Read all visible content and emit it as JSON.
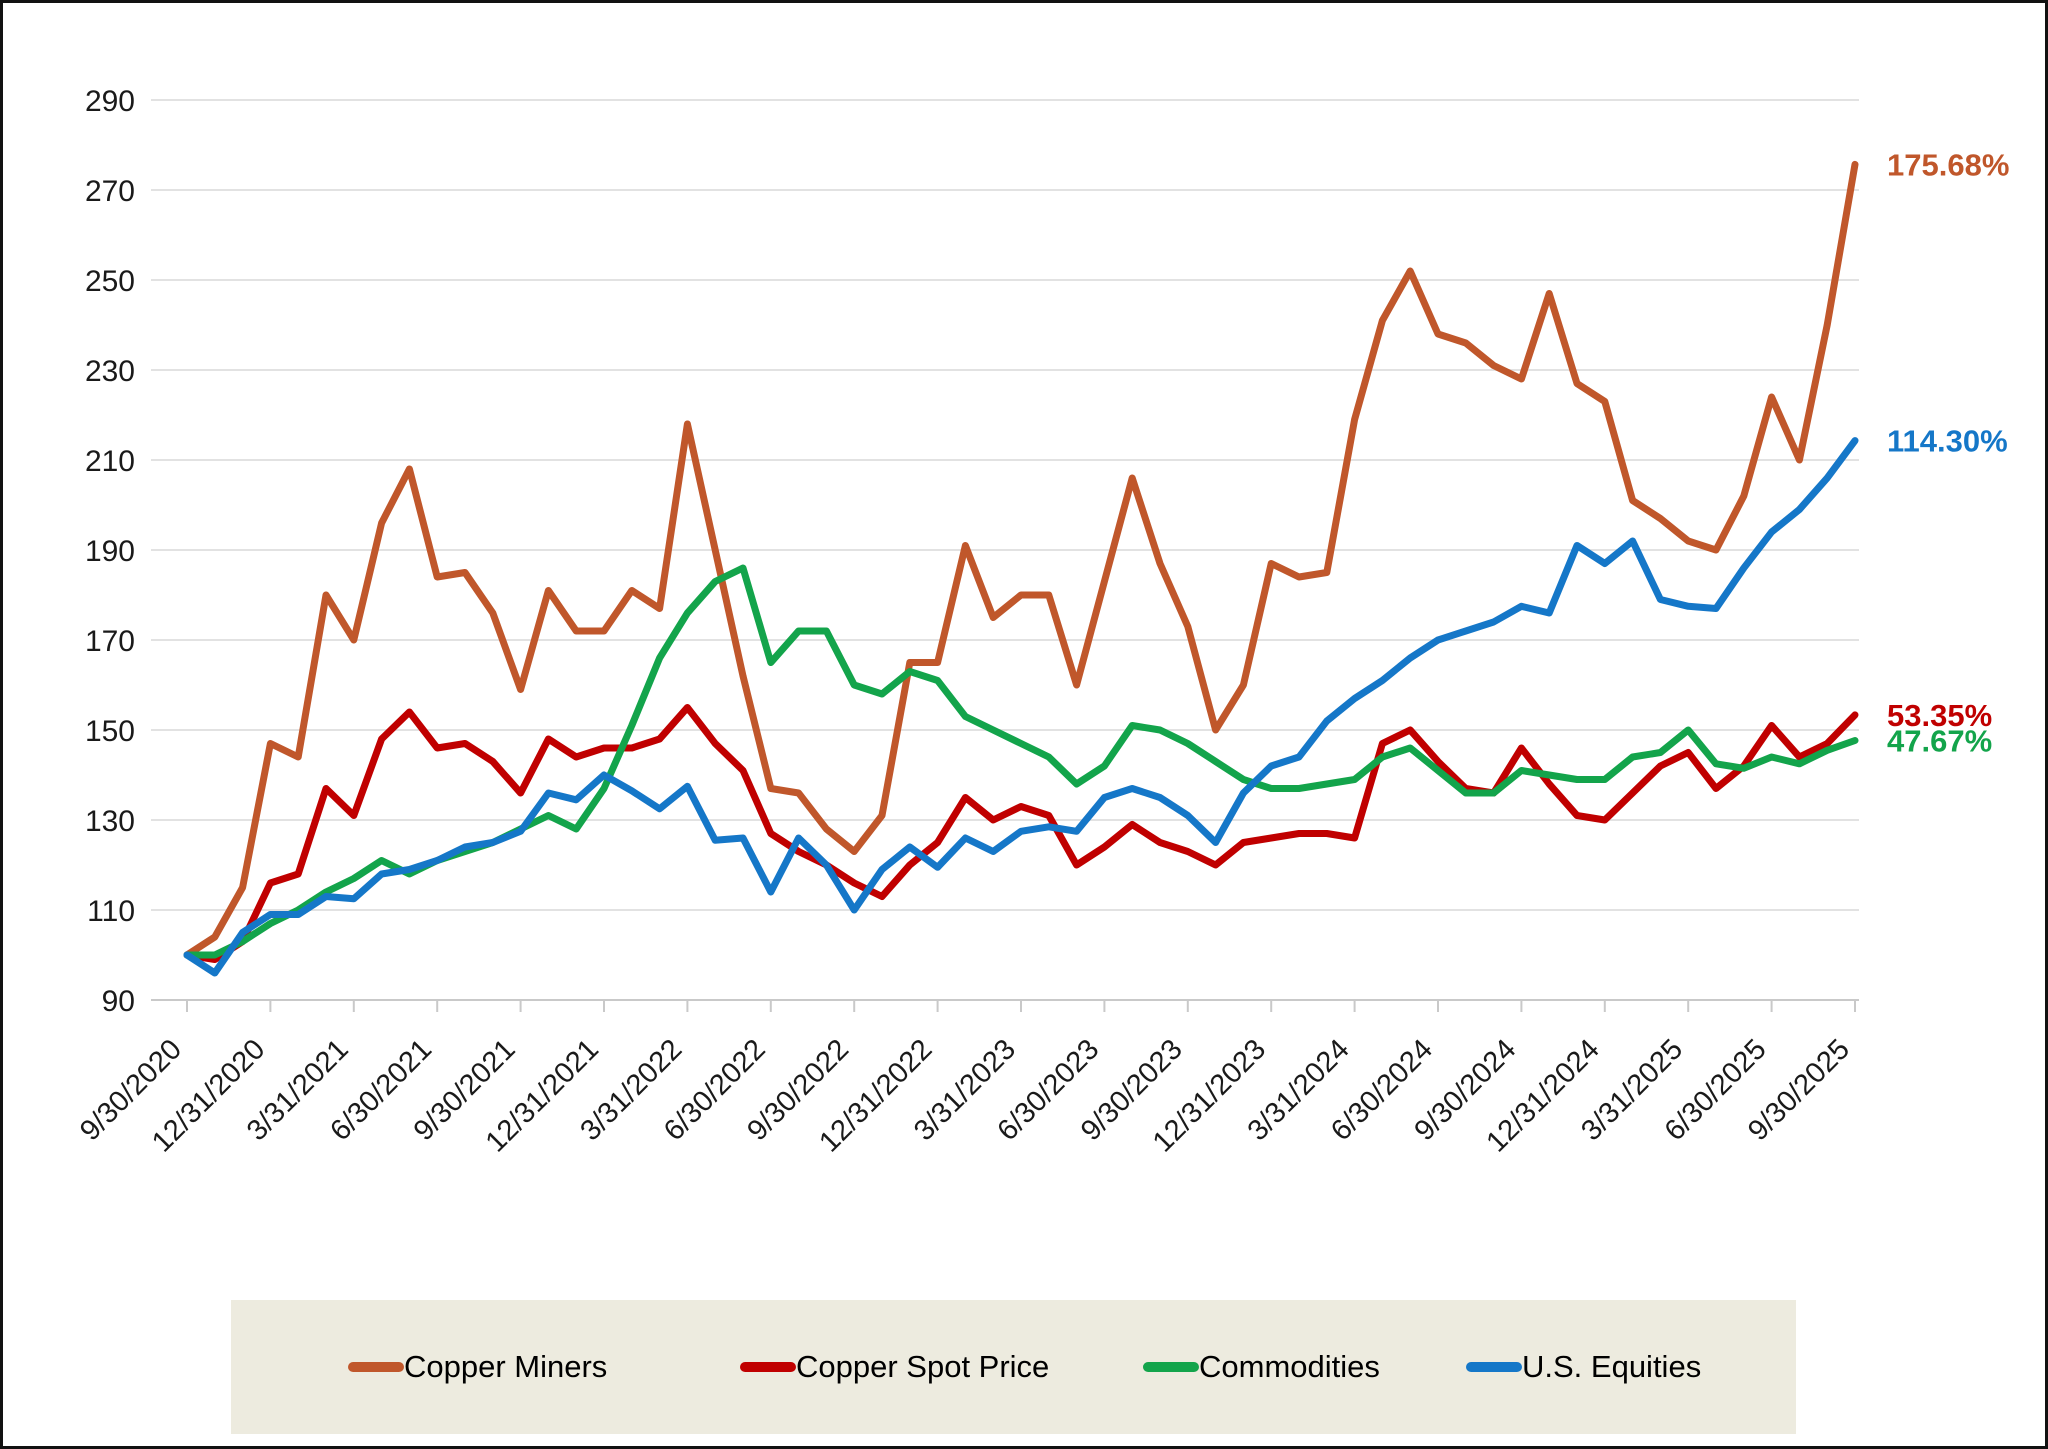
{
  "chart_data": {
    "type": "line",
    "title": "",
    "description": "Growth index chart, all series rebased to 100 at 9/30/2020, monthly data points with quarterly x-axis labels",
    "y_axis": {
      "min": 90,
      "max": 290,
      "step": 20,
      "tick_labels": [
        "90",
        "110",
        "130",
        "150",
        "170",
        "190",
        "210",
        "230",
        "250",
        "270",
        "290"
      ]
    },
    "x_tick_labels": [
      "9/30/2020",
      "12/31/2020",
      "3/31/2021",
      "6/30/2021",
      "9/30/2021",
      "12/31/2021",
      "3/31/2022",
      "6/30/2022",
      "9/30/2022",
      "12/31/2022",
      "3/31/2023",
      "6/30/2023",
      "9/30/2023",
      "12/31/2023",
      "3/31/2024",
      "6/30/2024",
      "9/30/2024",
      "12/31/2024",
      "3/31/2025",
      "6/30/2025",
      "9/30/2025"
    ],
    "points_per_quarter": 3,
    "grid": "horizontal",
    "legend_position": "bottom",
    "legend_bg": "#EDEBDF",
    "colors": {
      "gridline": "#E2E2E2",
      "axis": "#C9C9C9",
      "text": "#1A1A1A"
    },
    "series": [
      {
        "name": "Copper Miners",
        "color": "#C0572B",
        "end_label": "175.68%",
        "values": [
          100,
          104,
          115,
          147,
          144,
          180,
          170,
          196,
          208,
          184,
          185,
          176,
          159,
          181,
          172,
          172,
          181,
          177,
          218,
          190,
          162,
          137,
          136,
          128,
          123,
          131,
          165,
          165,
          191,
          175,
          180,
          180,
          160,
          183,
          206,
          187,
          173,
          150,
          160,
          187,
          184,
          185,
          219,
          241,
          252,
          238,
          236,
          231,
          228,
          247,
          227,
          223,
          201,
          197,
          192,
          190,
          202,
          224,
          210,
          240,
          275.68
        ]
      },
      {
        "name": "Copper Spot Price",
        "color": "#C00000",
        "end_label": "53.35%",
        "values": [
          100,
          99,
          103,
          116,
          118,
          137,
          131,
          148,
          154,
          146,
          147,
          143,
          136,
          148,
          144,
          146,
          146,
          148,
          155,
          147,
          141,
          127,
          123,
          120,
          116,
          113,
          120,
          125,
          135,
          130,
          133,
          131,
          120,
          124,
          129,
          125,
          123,
          120,
          125,
          126,
          127,
          127,
          126,
          147,
          150,
          143,
          137,
          136,
          146,
          138,
          131,
          130,
          136,
          142,
          145,
          137,
          142,
          151,
          144,
          147,
          153.35
        ]
      },
      {
        "name": "Commodities",
        "color": "#13A44B",
        "end_label": "47.67%",
        "values": [
          100,
          100,
          103,
          107,
          110,
          114,
          117,
          121,
          118,
          121,
          123,
          125,
          128,
          131,
          128,
          137,
          151,
          166,
          176,
          183,
          186,
          165,
          172,
          172,
          160,
          158,
          163,
          161,
          153,
          150,
          147,
          144,
          138,
          142,
          151,
          150,
          147,
          143,
          139,
          137,
          137,
          138,
          139,
          144,
          146,
          141,
          136,
          136,
          141,
          140,
          139,
          139,
          144,
          145,
          150,
          142.5,
          141.5,
          144,
          142.5,
          145.5,
          147.67
        ]
      },
      {
        "name": "U.S. Equities",
        "color": "#1577C8",
        "end_label": "114.30%",
        "values": [
          100,
          96,
          105,
          109,
          109,
          113,
          112.5,
          118,
          119,
          121,
          124,
          125,
          127.5,
          136,
          134.5,
          140,
          136.5,
          132.5,
          137.5,
          125.5,
          126,
          114,
          126,
          120,
          110,
          119,
          124,
          119.5,
          126,
          123,
          127.5,
          128.5,
          127.5,
          135,
          137,
          135,
          131,
          125,
          136,
          142,
          144,
          152,
          157,
          161,
          166,
          170,
          172,
          174,
          177.5,
          176,
          191,
          187,
          192,
          179,
          177.5,
          177,
          186,
          194,
          199,
          206,
          214.3
        ]
      }
    ],
    "legend_item_lefts": [
      345,
      737,
      1140,
      1463
    ]
  }
}
